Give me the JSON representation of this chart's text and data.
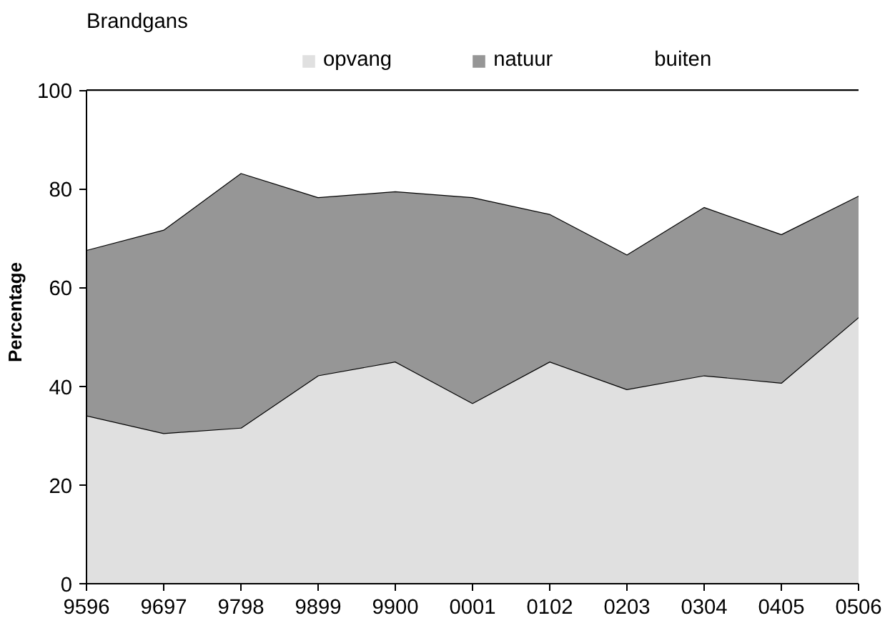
{
  "chart_data": {
    "type": "area",
    "stacked": true,
    "title": "Brandgans",
    "ylabel": "Percentage",
    "categories": [
      "9596",
      "9697",
      "9798",
      "9899",
      "9900",
      "0001",
      "0102",
      "0203",
      "0304",
      "0405",
      "0506"
    ],
    "series": [
      {
        "name": "opvang",
        "color": "#e0e0e0",
        "values": [
          34.1,
          30.5,
          31.6,
          42.2,
          45.0,
          36.6,
          45.0,
          39.4,
          42.2,
          40.7,
          54.0
        ]
      },
      {
        "name": "natuur",
        "color": "#969696",
        "values": [
          33.5,
          41.2,
          51.6,
          36.1,
          34.5,
          41.7,
          29.9,
          27.3,
          34.1,
          30.1,
          24.6
        ]
      },
      {
        "name": "buiten",
        "color": "#ffffff",
        "values": [
          32.4,
          28.3,
          16.8,
          21.7,
          20.5,
          21.7,
          25.1,
          33.3,
          23.7,
          29.2,
          21.4
        ]
      }
    ],
    "ylim": [
      0,
      100
    ],
    "yticks": [
      0,
      20,
      40,
      60,
      80,
      100
    ],
    "grid": false,
    "legend": "top"
  }
}
